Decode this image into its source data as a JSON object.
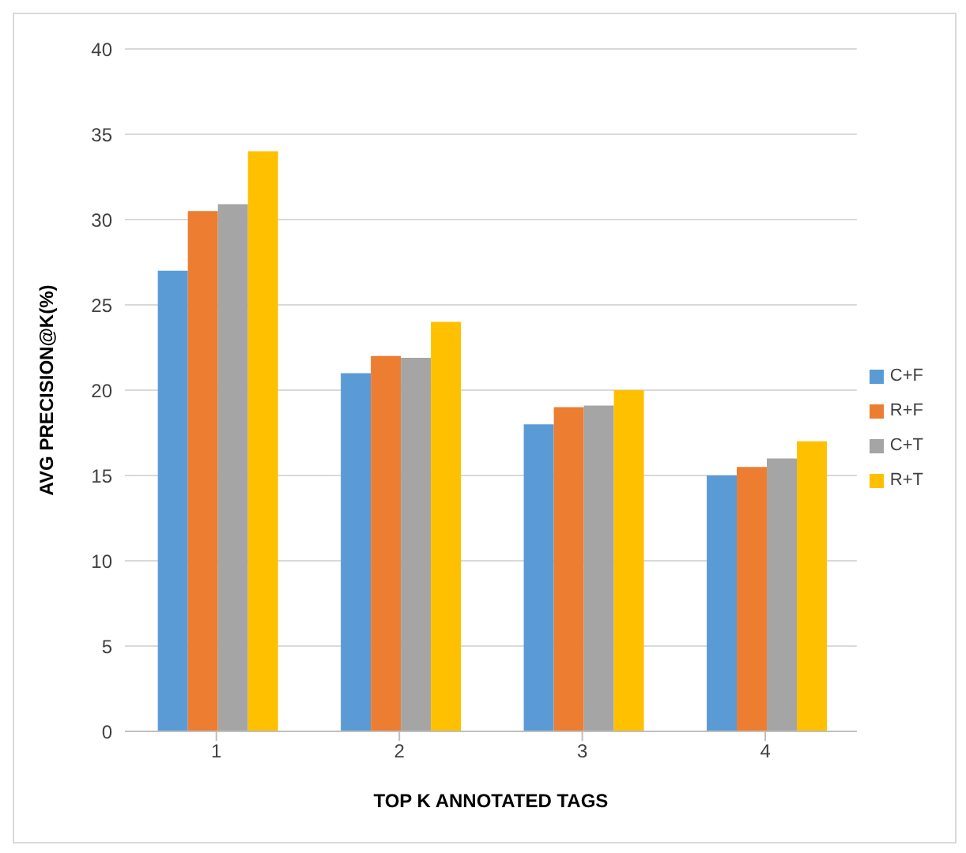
{
  "chart_data": {
    "type": "bar",
    "xlabel": "TOP K ANNOTATED TAGS",
    "ylabel": "AVG PRECISION@K(%)",
    "categories": [
      "1",
      "2",
      "3",
      "4"
    ],
    "series": [
      {
        "name": "C+F",
        "color": "#5b9bd5",
        "values": [
          27,
          21,
          18,
          15
        ]
      },
      {
        "name": "R+F",
        "color": "#ed7d31",
        "values": [
          30.5,
          22,
          19,
          15.5
        ]
      },
      {
        "name": "C+T",
        "color": "#a5a5a5",
        "values": [
          30.9,
          21.9,
          19.1,
          16
        ]
      },
      {
        "name": "R+T",
        "color": "#ffc000",
        "values": [
          34,
          24,
          20,
          17
        ]
      }
    ],
    "ylim": [
      0,
      40
    ],
    "yticks": [
      0,
      5,
      10,
      15,
      20,
      25,
      30,
      35,
      40
    ],
    "grid": "y",
    "legend": "right"
  }
}
